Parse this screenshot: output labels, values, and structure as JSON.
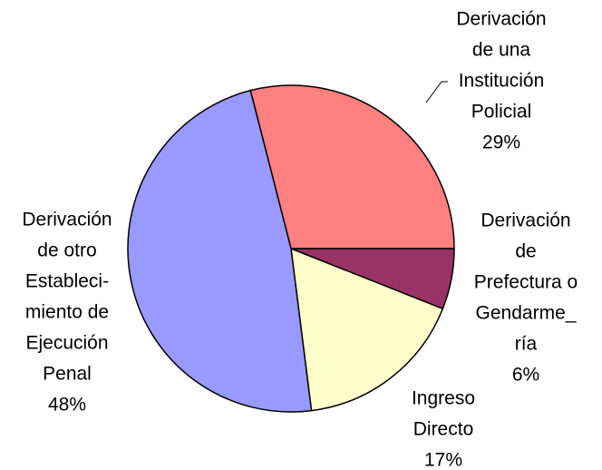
{
  "chart_data": {
    "type": "pie",
    "categories": [
      [
        "Derivación",
        "de una",
        "Institución",
        "Policial"
      ],
      [
        "Derivación",
        "de",
        "Prefectura o",
        "Gendarme_",
        "ría"
      ],
      [
        "Ingreso",
        "Directo"
      ],
      [
        "Derivación",
        "de otro",
        "Estableci-",
        "miento de",
        "Ejecución",
        "Penal"
      ]
    ],
    "values": [
      29,
      6,
      17,
      48
    ],
    "value_labels": [
      "29%",
      "6%",
      "17%",
      "48%"
    ],
    "colors": [
      "#ff8080",
      "#993366",
      "#ffffcc",
      "#9999ff"
    ]
  }
}
